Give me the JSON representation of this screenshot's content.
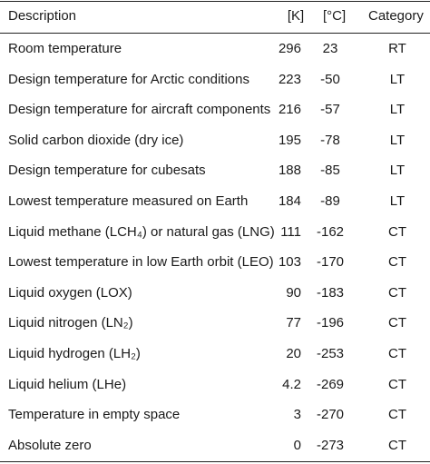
{
  "header": {
    "description": "Description",
    "kelvin": "[K]",
    "celsius": "[°C]",
    "category": "Category"
  },
  "rows": [
    {
      "description": "Room temperature",
      "kelvin": "296",
      "celsius": "23",
      "category": "RT"
    },
    {
      "description": "Design temperature for Arctic conditions",
      "kelvin": "223",
      "celsius": "-50",
      "category": "LT"
    },
    {
      "description": "Design temperature for aircraft components",
      "kelvin": "216",
      "celsius": "-57",
      "category": "LT"
    },
    {
      "description": "Solid carbon dioxide (dry ice)",
      "kelvin": "195",
      "celsius": "-78",
      "category": "LT"
    },
    {
      "description": "Design temperature for cubesats",
      "kelvin": "188",
      "celsius": "-85",
      "category": "LT"
    },
    {
      "description": "Lowest temperature measured on Earth",
      "kelvin": "184",
      "celsius": "-89",
      "category": "LT"
    },
    {
      "description": "Liquid methane (LCH₄) or natural gas (LNG)",
      "kelvin": "111",
      "celsius": "-162",
      "category": "CT"
    },
    {
      "description": "Lowest temperature in low Earth orbit (LEO)",
      "kelvin": "103",
      "celsius": "-170",
      "category": "CT"
    },
    {
      "description": "Liquid oxygen (LOX)",
      "kelvin": "90",
      "celsius": "-183",
      "category": "CT"
    },
    {
      "description": "Liquid nitrogen (LN₂)",
      "kelvin": "77",
      "celsius": "-196",
      "category": "CT"
    },
    {
      "description": "Liquid hydrogen (LH₂)",
      "kelvin": "20",
      "celsius": "-253",
      "category": "CT"
    },
    {
      "description": "Liquid helium (LHe)",
      "kelvin": "4.2",
      "celsius": "-269",
      "category": "CT"
    },
    {
      "description": "Temperature in empty space",
      "kelvin": "3",
      "celsius": "-270",
      "category": "CT"
    },
    {
      "description": "Absolute zero",
      "kelvin": "0",
      "celsius": "-273",
      "category": "CT"
    }
  ]
}
